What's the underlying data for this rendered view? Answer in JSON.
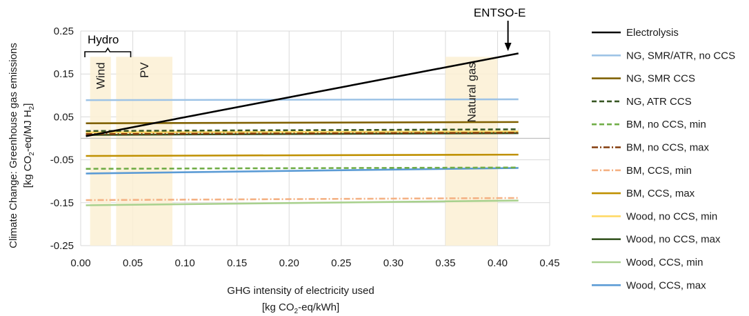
{
  "chart_data": {
    "type": "line",
    "xlabel_line1": "GHG intensity of electricity used",
    "xlabel_line2_pre": "[kg CO",
    "xlabel_line2_sub": "2",
    "xlabel_line2_post": "-eq/kWh]",
    "ylabel_line1": "Climate Change: Greenhouse gas emissions",
    "ylabel_line2_pre": "[kg CO",
    "ylabel_line2_sub": "2",
    "ylabel_line2_mid": "-eq/MJ H",
    "ylabel_line2_sub2": "2",
    "ylabel_line2_post": "]",
    "xlim": [
      0,
      0.45
    ],
    "ylim": [
      -0.25,
      0.25
    ],
    "xticks": [
      0.0,
      0.05,
      0.1,
      0.15,
      0.2,
      0.25,
      0.3,
      0.35,
      0.4,
      0.45
    ],
    "xtick_labels": [
      "0.00",
      "0.05",
      "0.10",
      "0.15",
      "0.20",
      "0.25",
      "0.30",
      "0.35",
      "0.40",
      "0.45"
    ],
    "yticks": [
      0.25,
      0.15,
      0.05,
      -0.05,
      -0.15,
      -0.25
    ],
    "ytick_labels": [
      "0.25",
      "0.15",
      "0.05",
      "-0.05",
      "-0.15",
      "-0.25"
    ],
    "grid": "vertical and horizontal",
    "legend_position": "right",
    "bands": [
      {
        "label": "Wind",
        "x0": 0.009,
        "x1": 0.029,
        "y_top": 0.19,
        "color": "#fcf0d4",
        "rotated": true
      },
      {
        "label": "PV",
        "x0": 0.034,
        "x1": 0.088,
        "y_top": 0.19,
        "color": "#fcf0d4",
        "rotated": true
      },
      {
        "label": "Natural gas",
        "x0": 0.35,
        "x1": 0.4,
        "y_top": 0.19,
        "color": "#fcf0d4",
        "rotated": true
      }
    ],
    "annotations": {
      "hydro": {
        "label": "Hydro",
        "x0": 0.004,
        "x1": 0.048
      },
      "entsoe": {
        "label": "ENTSO-E",
        "x": 0.41
      }
    },
    "series": [
      {
        "name": "Electrolysis",
        "color": "#000000",
        "dash": "solid",
        "x": [
          0.005,
          0.42
        ],
        "y": [
          0.005,
          0.198
        ]
      },
      {
        "name": "NG, SMR/ATR, no CCS",
        "color": "#9dc3e6",
        "dash": "solid",
        "x": [
          0.005,
          0.42
        ],
        "y": [
          0.089,
          0.091
        ]
      },
      {
        "name": "NG, SMR CCS",
        "color": "#7f6000",
        "dash": "solid",
        "x": [
          0.005,
          0.42
        ],
        "y": [
          0.035,
          0.038
        ]
      },
      {
        "name": "NG, ATR CCS",
        "color": "#375623",
        "dash": "dashed",
        "x": [
          0.005,
          0.42
        ],
        "y": [
          0.017,
          0.021
        ]
      },
      {
        "name": "BM, no CCS, min",
        "color": "#70ad47",
        "dash": "dashed",
        "x": [
          0.005,
          0.42
        ],
        "y": [
          -0.071,
          -0.068
        ]
      },
      {
        "name": "BM, no CCS, max",
        "color": "#843c0c",
        "dash": "dashdot",
        "x": [
          0.005,
          0.42
        ],
        "y": [
          0.01,
          0.013
        ]
      },
      {
        "name": "BM, CCS, min",
        "color": "#f4b183",
        "dash": "dashdot",
        "x": [
          0.005,
          0.42
        ],
        "y": [
          -0.144,
          -0.139
        ]
      },
      {
        "name": "BM, CCS, max",
        "color": "#bf9000",
        "dash": "solid",
        "x": [
          0.005,
          0.42
        ],
        "y": [
          -0.041,
          -0.038
        ]
      },
      {
        "name": "Wood, no CCS, min",
        "color": "#ffd966",
        "dash": "solid",
        "x": [
          0.005,
          0.42
        ],
        "y": [
          0.014,
          0.016
        ]
      },
      {
        "name": "Wood, no CCS, max",
        "color": "#375623",
        "dash": "solid",
        "x": [
          0.005,
          0.42
        ],
        "y": [
          0.008,
          0.012
        ]
      },
      {
        "name": "Wood, CCS, min",
        "color": "#a9d18e",
        "dash": "solid",
        "x": [
          0.005,
          0.42
        ],
        "y": [
          -0.156,
          -0.145
        ]
      },
      {
        "name": "Wood, CCS, max",
        "color": "#5b9bd5",
        "dash": "solid",
        "x": [
          0.005,
          0.42
        ],
        "y": [
          -0.082,
          -0.069
        ]
      }
    ]
  }
}
